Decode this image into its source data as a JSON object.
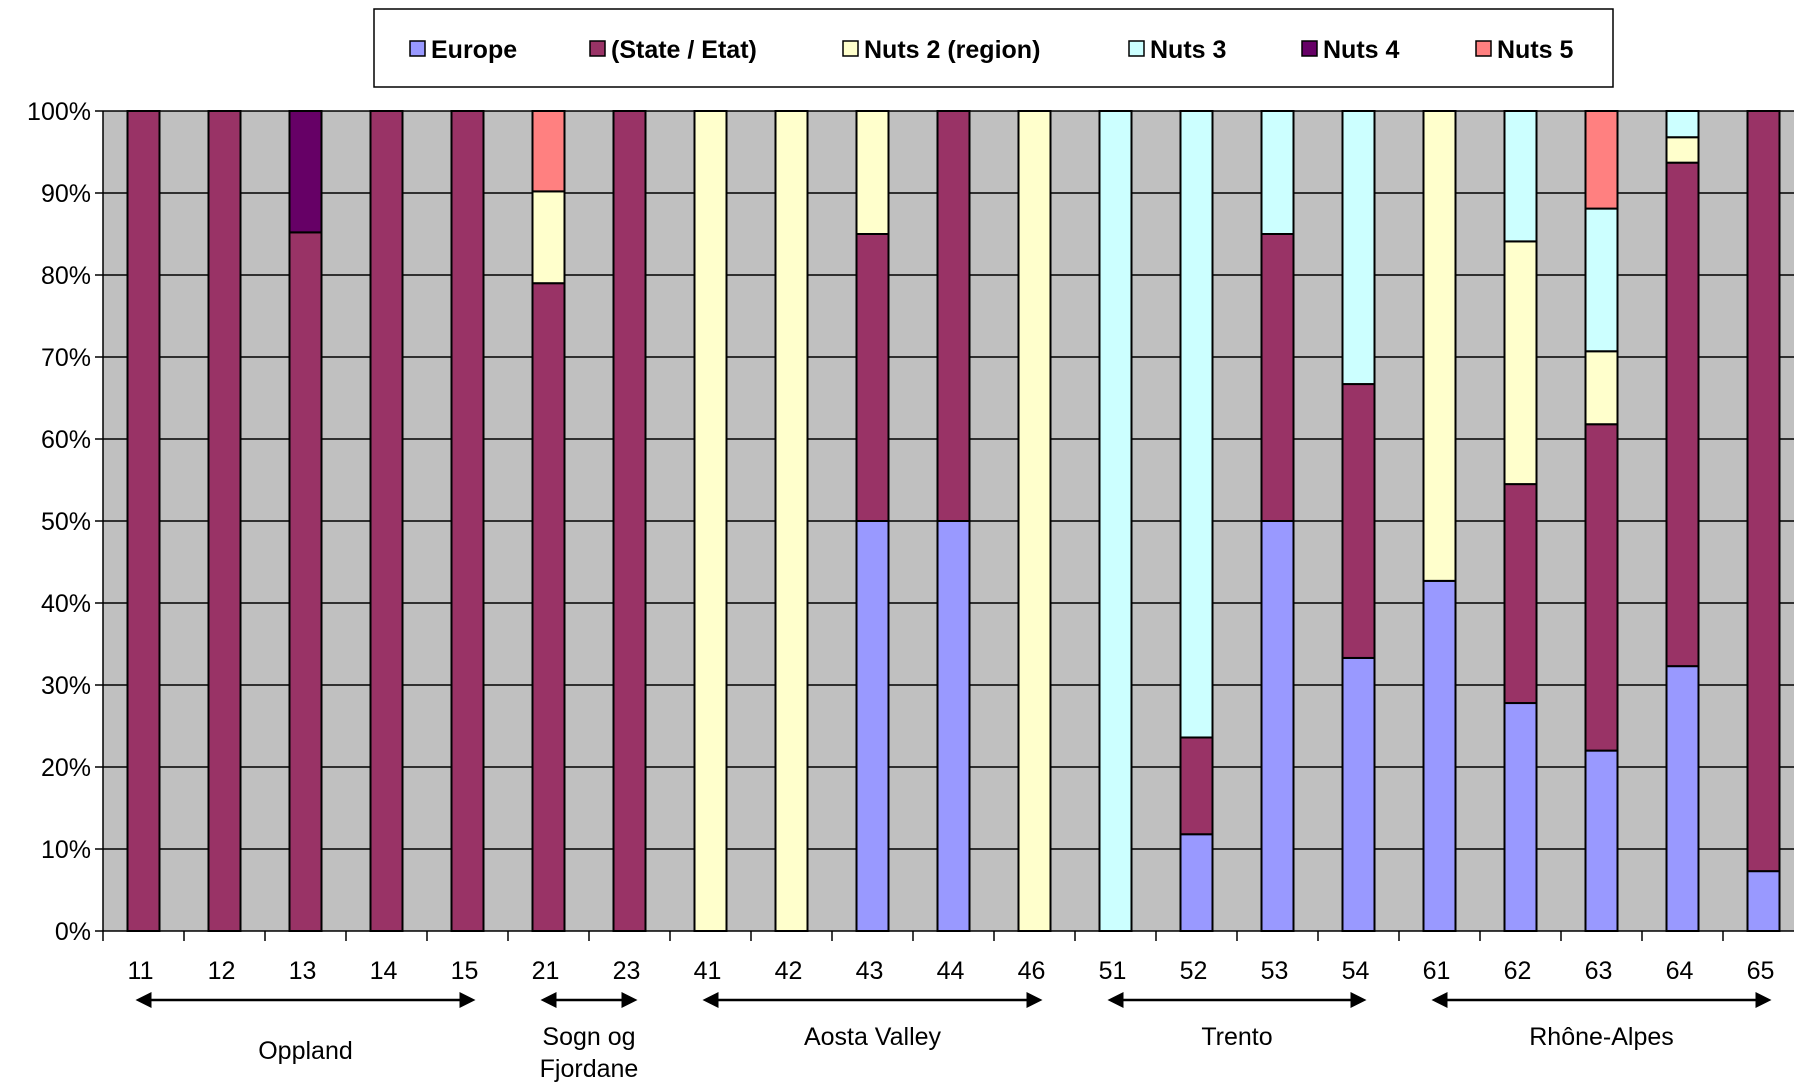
{
  "chart_data": {
    "type": "bar",
    "stacked": true,
    "percent": true,
    "categories": [
      "11",
      "12",
      "13",
      "14",
      "15",
      "21",
      "23",
      "41",
      "42",
      "43",
      "44",
      "46",
      "51",
      "52",
      "53",
      "54",
      "61",
      "62",
      "63",
      "64",
      "65"
    ],
    "series": [
      {
        "name": "Europe",
        "color": "#9999ff",
        "values": [
          0,
          0,
          0,
          0,
          0,
          0,
          0,
          0,
          0,
          50,
          50,
          0,
          0,
          11.8,
          50,
          33.3,
          42.7,
          27.8,
          22,
          32.3,
          7.3
        ]
      },
      {
        "name": "(State / Etat)",
        "color": "#993366",
        "values": [
          100,
          100,
          85.2,
          100,
          100,
          79,
          100,
          0,
          0,
          35,
          50,
          0,
          0,
          11.8,
          35,
          33.4,
          0,
          26.7,
          39.8,
          61.4,
          92.7
        ]
      },
      {
        "name": "Nuts 2 (region)",
        "color": "#ffffcc",
        "values": [
          0,
          0,
          0,
          0,
          0,
          11.2,
          0,
          100,
          100,
          15,
          0,
          100,
          0,
          0,
          0,
          0,
          57.3,
          29.6,
          8.9,
          3.1,
          0
        ]
      },
      {
        "name": "Nuts 3",
        "color": "#ccffff",
        "values": [
          0,
          0,
          0,
          0,
          0,
          0,
          0,
          0,
          0,
          0,
          0,
          0,
          100,
          76.4,
          15,
          33.3,
          0,
          15.9,
          17.4,
          3.2,
          0
        ]
      },
      {
        "name": "Nuts 4",
        "color": "#660066",
        "values": [
          0,
          0,
          14.8,
          0,
          0,
          0,
          0,
          0,
          0,
          0,
          0,
          0,
          0,
          0,
          0,
          0,
          0,
          0,
          0,
          0,
          0
        ]
      },
      {
        "name": "Nuts 5",
        "color": "#ff8080",
        "values": [
          0,
          0,
          0,
          0,
          0,
          9.8,
          0,
          0,
          0,
          0,
          0,
          0,
          0,
          0,
          0,
          0,
          0,
          0,
          11.9,
          0,
          0
        ]
      }
    ],
    "y_ticks": [
      "0%",
      "10%",
      "20%",
      "30%",
      "40%",
      "50%",
      "60%",
      "70%",
      "80%",
      "90%",
      "100%"
    ],
    "ylim": [
      0,
      100
    ],
    "title": "",
    "xlabel": "",
    "ylabel": "",
    "grid": true,
    "plot_background": "#c0c0c0",
    "legend_position": "top",
    "groups": [
      {
        "label": "Oppland",
        "from": 0,
        "to": 4
      },
      {
        "label": "Sogn og\nFjordane",
        "from": 5,
        "to": 6
      },
      {
        "label": "Aosta Valley",
        "from": 7,
        "to": 11
      },
      {
        "label": "Trento",
        "from": 12,
        "to": 15
      },
      {
        "label": "Rhône-Alpes",
        "from": 16,
        "to": 20
      }
    ]
  }
}
